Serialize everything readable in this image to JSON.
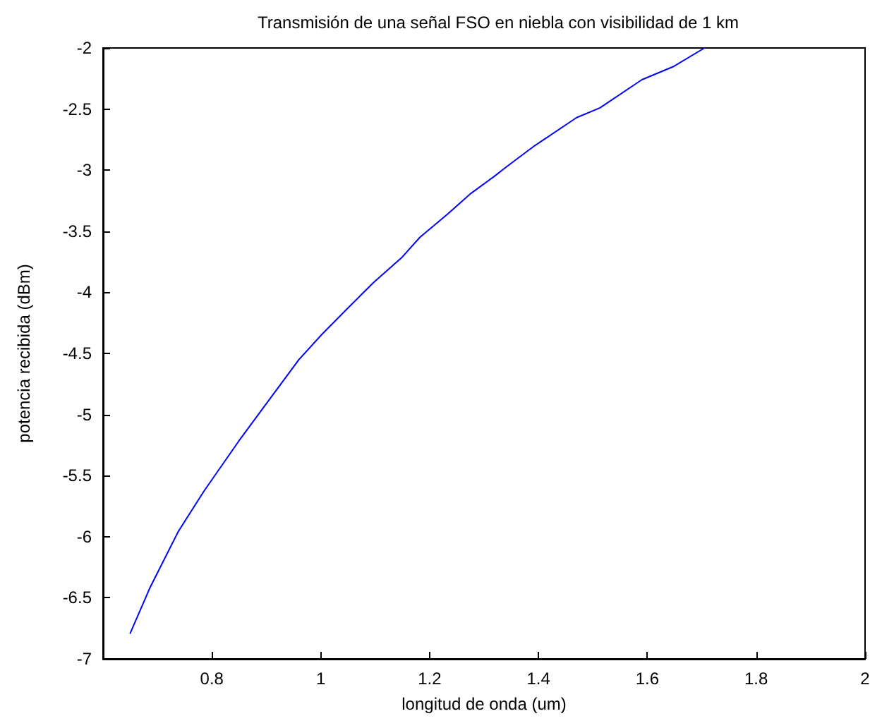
{
  "chart_data": {
    "type": "line",
    "title": "Transmisión de una señal FSO en niebla con visibilidad de 1 km",
    "xlabel": "longitud de onda (um)",
    "ylabel": "potencia recibida (dBm)",
    "x": [
      0.65,
      0.686,
      0.738,
      0.785,
      0.849,
      0.892,
      0.96,
      1.003,
      1.054,
      1.097,
      1.15,
      1.182,
      1.233,
      1.276,
      1.319,
      1.342,
      1.393,
      1.47,
      1.513,
      1.59,
      1.649,
      1.705
    ],
    "series": [
      {
        "color": "#0000ff",
        "values": [
          -6.79,
          -6.42,
          -5.96,
          -5.63,
          -5.22,
          -4.96,
          -4.55,
          -4.34,
          -4.11,
          -3.92,
          -3.71,
          -3.55,
          -3.36,
          -3.19,
          -3.05,
          -2.97,
          -2.8,
          -2.57,
          -2.49,
          -2.26,
          -2.15,
          -2.0
        ]
      }
    ],
    "xlim": [
      0.6,
      2
    ],
    "xticks": [
      0.8,
      1,
      1.2,
      1.4,
      1.6,
      1.8,
      2
    ],
    "ylim": [
      -7,
      -2
    ],
    "yticks": [
      -7,
      -6.5,
      -6,
      -5.5,
      -5,
      -4.5,
      -4,
      -3.5,
      -3,
      -2.5,
      -2
    ],
    "marker": "none",
    "line_style": "solid"
  }
}
